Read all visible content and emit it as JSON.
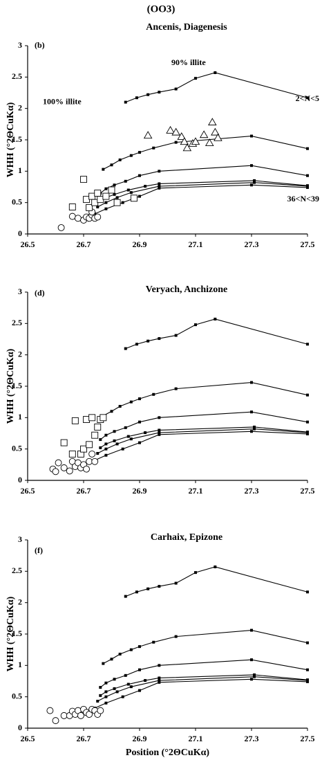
{
  "title": "(OO3)",
  "chart_data": [
    {
      "type": "line",
      "title": "Ancenis, Diagenesis",
      "panel_label": "(b)",
      "y_label": "WHH  (°2ΘCuKα)",
      "annotations": [
        "100% illite",
        "90% illite",
        "2<N<5",
        "36<N<39"
      ],
      "xlim": [
        26.5,
        27.5
      ],
      "xticks": [
        26.5,
        26.7,
        26.9,
        27.1,
        27.3,
        27.5
      ],
      "ylim": [
        0,
        3
      ],
      "yticks": [
        0,
        0.5,
        1,
        1.5,
        2,
        2.5,
        3
      ],
      "series": [
        {
          "marker": "filled-square",
          "x": [
            26.85,
            26.89,
            26.93,
            26.97,
            27.03,
            27.1,
            27.17,
            27.5
          ],
          "values": [
            2.1,
            2.17,
            2.22,
            2.26,
            2.31,
            2.48,
            2.57,
            2.17
          ]
        },
        {
          "marker": "filled-square",
          "x": [
            26.77,
            26.8,
            26.83,
            26.87,
            26.9,
            26.95,
            27.03,
            27.3,
            27.5
          ],
          "values": [
            1.03,
            1.1,
            1.18,
            1.25,
            1.3,
            1.37,
            1.46,
            1.56,
            1.36
          ]
        },
        {
          "marker": "filled-square",
          "x": [
            26.76,
            26.78,
            26.81,
            26.85,
            26.9,
            26.97,
            27.3,
            27.5
          ],
          "values": [
            0.65,
            0.72,
            0.78,
            0.84,
            0.93,
            1.0,
            1.09,
            0.93
          ]
        },
        {
          "marker": "filled-square",
          "x": [
            26.76,
            26.78,
            26.81,
            26.86,
            26.92,
            26.97,
            27.31,
            27.5
          ],
          "values": [
            0.52,
            0.58,
            0.63,
            0.7,
            0.76,
            0.8,
            0.85,
            0.77
          ]
        },
        {
          "marker": "filled-square",
          "x": [
            26.75,
            26.78,
            26.82,
            26.87,
            26.97,
            27.31,
            27.5
          ],
          "values": [
            0.43,
            0.5,
            0.58,
            0.66,
            0.76,
            0.82,
            0.76
          ]
        },
        {
          "marker": "filled-square",
          "x": [
            26.74,
            26.78,
            26.84,
            26.9,
            26.97,
            27.3,
            27.5
          ],
          "values": [
            0.32,
            0.4,
            0.5,
            0.6,
            0.73,
            0.78,
            0.74
          ]
        },
        {
          "marker": "circle",
          "x": [
            26.62,
            26.66,
            26.68,
            26.7,
            26.71,
            26.72,
            26.73,
            26.74,
            26.75,
            26.73
          ],
          "values": [
            0.1,
            0.28,
            0.25,
            0.22,
            0.27,
            0.25,
            0.3,
            0.25,
            0.27,
            0.35
          ]
        },
        {
          "marker": "square",
          "x": [
            26.66,
            26.7,
            26.71,
            26.72,
            26.73,
            26.74,
            26.75,
            26.76,
            26.78,
            26.8,
            26.82,
            26.88
          ],
          "values": [
            0.43,
            0.87,
            0.55,
            0.42,
            0.6,
            0.5,
            0.65,
            0.55,
            0.6,
            0.7,
            0.5,
            0.57
          ]
        },
        {
          "marker": "triangle",
          "x": [
            26.93,
            27.01,
            27.03,
            27.05,
            27.06,
            27.07,
            27.09,
            27.1,
            27.13,
            27.15,
            27.16,
            27.17,
            27.18
          ],
          "values": [
            1.57,
            1.65,
            1.62,
            1.55,
            1.47,
            1.37,
            1.44,
            1.47,
            1.58,
            1.45,
            1.78,
            1.62,
            1.53
          ]
        }
      ]
    },
    {
      "type": "line",
      "title": "Veryach, Anchizone",
      "panel_label": "(d)",
      "y_label": "WHH  (°2ΘCuKα)",
      "xlim": [
        26.5,
        27.5
      ],
      "xticks": [
        26.5,
        26.7,
        26.9,
        27.1,
        27.3,
        27.5
      ],
      "ylim": [
        0,
        3
      ],
      "yticks": [
        0,
        0.5,
        1,
        1.5,
        2,
        2.5,
        3
      ],
      "series": [
        {
          "marker": "filled-square",
          "x": [
            26.85,
            26.89,
            26.93,
            26.97,
            27.03,
            27.1,
            27.17,
            27.5
          ],
          "values": [
            2.1,
            2.17,
            2.22,
            2.26,
            2.31,
            2.48,
            2.57,
            2.17
          ]
        },
        {
          "marker": "filled-square",
          "x": [
            26.77,
            26.8,
            26.83,
            26.87,
            26.9,
            26.95,
            27.03,
            27.3,
            27.5
          ],
          "values": [
            1.03,
            1.1,
            1.18,
            1.25,
            1.3,
            1.37,
            1.46,
            1.56,
            1.36
          ]
        },
        {
          "marker": "filled-square",
          "x": [
            26.76,
            26.78,
            26.81,
            26.85,
            26.9,
            26.97,
            27.3,
            27.5
          ],
          "values": [
            0.65,
            0.72,
            0.78,
            0.84,
            0.93,
            1.0,
            1.09,
            0.93
          ]
        },
        {
          "marker": "filled-square",
          "x": [
            26.76,
            26.78,
            26.81,
            26.86,
            26.92,
            26.97,
            27.31,
            27.5
          ],
          "values": [
            0.52,
            0.58,
            0.63,
            0.7,
            0.76,
            0.8,
            0.85,
            0.77
          ]
        },
        {
          "marker": "filled-square",
          "x": [
            26.75,
            26.78,
            26.82,
            26.87,
            26.97,
            27.31,
            27.5
          ],
          "values": [
            0.43,
            0.5,
            0.58,
            0.66,
            0.76,
            0.82,
            0.76
          ]
        },
        {
          "marker": "filled-square",
          "x": [
            26.74,
            26.78,
            26.84,
            26.9,
            26.97,
            27.3,
            27.5
          ],
          "values": [
            0.32,
            0.4,
            0.5,
            0.6,
            0.73,
            0.78,
            0.74
          ]
        },
        {
          "marker": "circle",
          "x": [
            26.59,
            26.6,
            26.61,
            26.63,
            26.65,
            26.66,
            26.67,
            26.68,
            26.69,
            26.7,
            26.72,
            26.73,
            26.74,
            26.71
          ],
          "values": [
            0.18,
            0.14,
            0.28,
            0.2,
            0.15,
            0.3,
            0.22,
            0.28,
            0.2,
            0.25,
            0.3,
            0.42,
            0.3,
            0.18
          ]
        },
        {
          "marker": "square",
          "x": [
            26.63,
            26.66,
            26.67,
            26.69,
            26.7,
            26.71,
            26.72,
            26.73,
            26.74,
            26.75,
            26.76,
            26.77
          ],
          "values": [
            0.6,
            0.42,
            0.95,
            0.42,
            0.5,
            0.97,
            0.57,
            1.0,
            0.72,
            0.85,
            0.97,
            1.0
          ]
        }
      ]
    },
    {
      "type": "line",
      "title": "Carhaix, Epizone",
      "panel_label": "(f)",
      "y_label": "WHH  (°2ΘCuKα)",
      "x_label": "Position (°2ΘCuKα)",
      "xlim": [
        26.5,
        27.5
      ],
      "xticks": [
        26.5,
        26.7,
        26.9,
        27.1,
        27.3,
        27.5
      ],
      "ylim": [
        0,
        3
      ],
      "yticks": [
        0,
        0.5,
        1,
        1.5,
        2,
        2.5,
        3
      ],
      "series": [
        {
          "marker": "filled-square",
          "x": [
            26.85,
            26.89,
            26.93,
            26.97,
            27.03,
            27.1,
            27.17,
            27.5
          ],
          "values": [
            2.1,
            2.17,
            2.22,
            2.26,
            2.31,
            2.48,
            2.57,
            2.17
          ]
        },
        {
          "marker": "filled-square",
          "x": [
            26.77,
            26.8,
            26.83,
            26.87,
            26.9,
            26.95,
            27.03,
            27.3,
            27.5
          ],
          "values": [
            1.03,
            1.1,
            1.18,
            1.25,
            1.3,
            1.37,
            1.46,
            1.56,
            1.36
          ]
        },
        {
          "marker": "filled-square",
          "x": [
            26.76,
            26.78,
            26.81,
            26.85,
            26.9,
            26.97,
            27.3,
            27.5
          ],
          "values": [
            0.65,
            0.72,
            0.78,
            0.84,
            0.93,
            1.0,
            1.09,
            0.93
          ]
        },
        {
          "marker": "filled-square",
          "x": [
            26.76,
            26.78,
            26.81,
            26.86,
            26.92,
            26.97,
            27.31,
            27.5
          ],
          "values": [
            0.52,
            0.58,
            0.63,
            0.7,
            0.76,
            0.8,
            0.85,
            0.77
          ]
        },
        {
          "marker": "filled-square",
          "x": [
            26.75,
            26.78,
            26.82,
            26.87,
            26.97,
            27.31,
            27.5
          ],
          "values": [
            0.43,
            0.5,
            0.58,
            0.66,
            0.76,
            0.82,
            0.76
          ]
        },
        {
          "marker": "filled-square",
          "x": [
            26.74,
            26.78,
            26.84,
            26.9,
            26.97,
            27.3,
            27.5
          ],
          "values": [
            0.32,
            0.4,
            0.5,
            0.6,
            0.73,
            0.78,
            0.74
          ]
        },
        {
          "marker": "circle",
          "x": [
            26.58,
            26.6,
            26.63,
            26.65,
            26.66,
            26.67,
            26.68,
            26.69,
            26.7,
            26.71,
            26.72,
            26.73,
            26.74,
            26.75,
            26.76
          ],
          "values": [
            0.28,
            0.12,
            0.2,
            0.2,
            0.27,
            0.22,
            0.28,
            0.2,
            0.3,
            0.25,
            0.22,
            0.3,
            0.28,
            0.22,
            0.28
          ]
        }
      ]
    }
  ]
}
